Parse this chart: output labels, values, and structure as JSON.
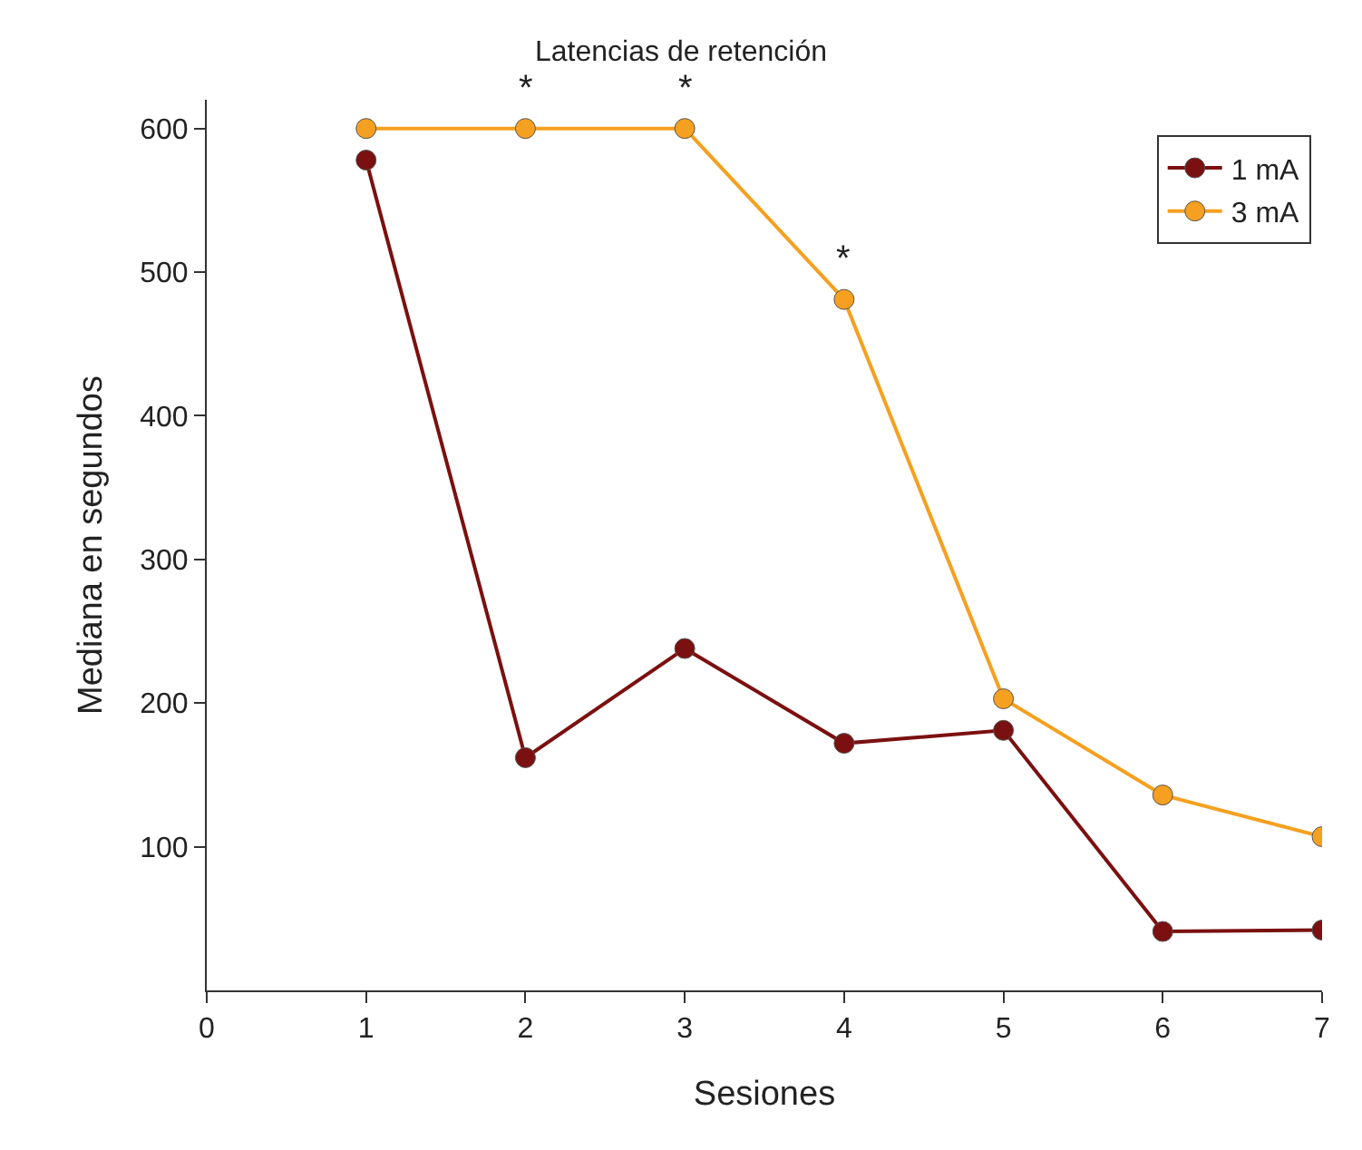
{
  "chart_data": {
    "type": "line",
    "title": "Latencias de retención",
    "xlabel": "Sesiones",
    "ylabel": "Mediana en segundos",
    "x": [
      1,
      2,
      3,
      4,
      5,
      6,
      7
    ],
    "series": [
      {
        "name": "1 mA",
        "color": "#7b1010",
        "values": [
          578,
          162,
          238,
          172,
          181,
          41,
          42
        ]
      },
      {
        "name": "3 mA",
        "color": "#f5a020",
        "values": [
          600,
          600,
          600,
          481,
          203,
          136,
          107
        ]
      }
    ],
    "xlim": [
      0,
      7
    ],
    "xticks": [
      0,
      1,
      2,
      3,
      4,
      5,
      6,
      7
    ],
    "ylim": [
      0,
      620
    ],
    "yticks": [
      100,
      200,
      300,
      400,
      500,
      600
    ],
    "annotations": [
      {
        "text": "*",
        "x": 2,
        "y": 600
      },
      {
        "text": "*",
        "x": 3,
        "y": 600
      },
      {
        "text": "*",
        "x": 4,
        "y": 481
      }
    ],
    "marker": "circle",
    "line_style": "solid",
    "grid": false,
    "legend": "top right"
  }
}
